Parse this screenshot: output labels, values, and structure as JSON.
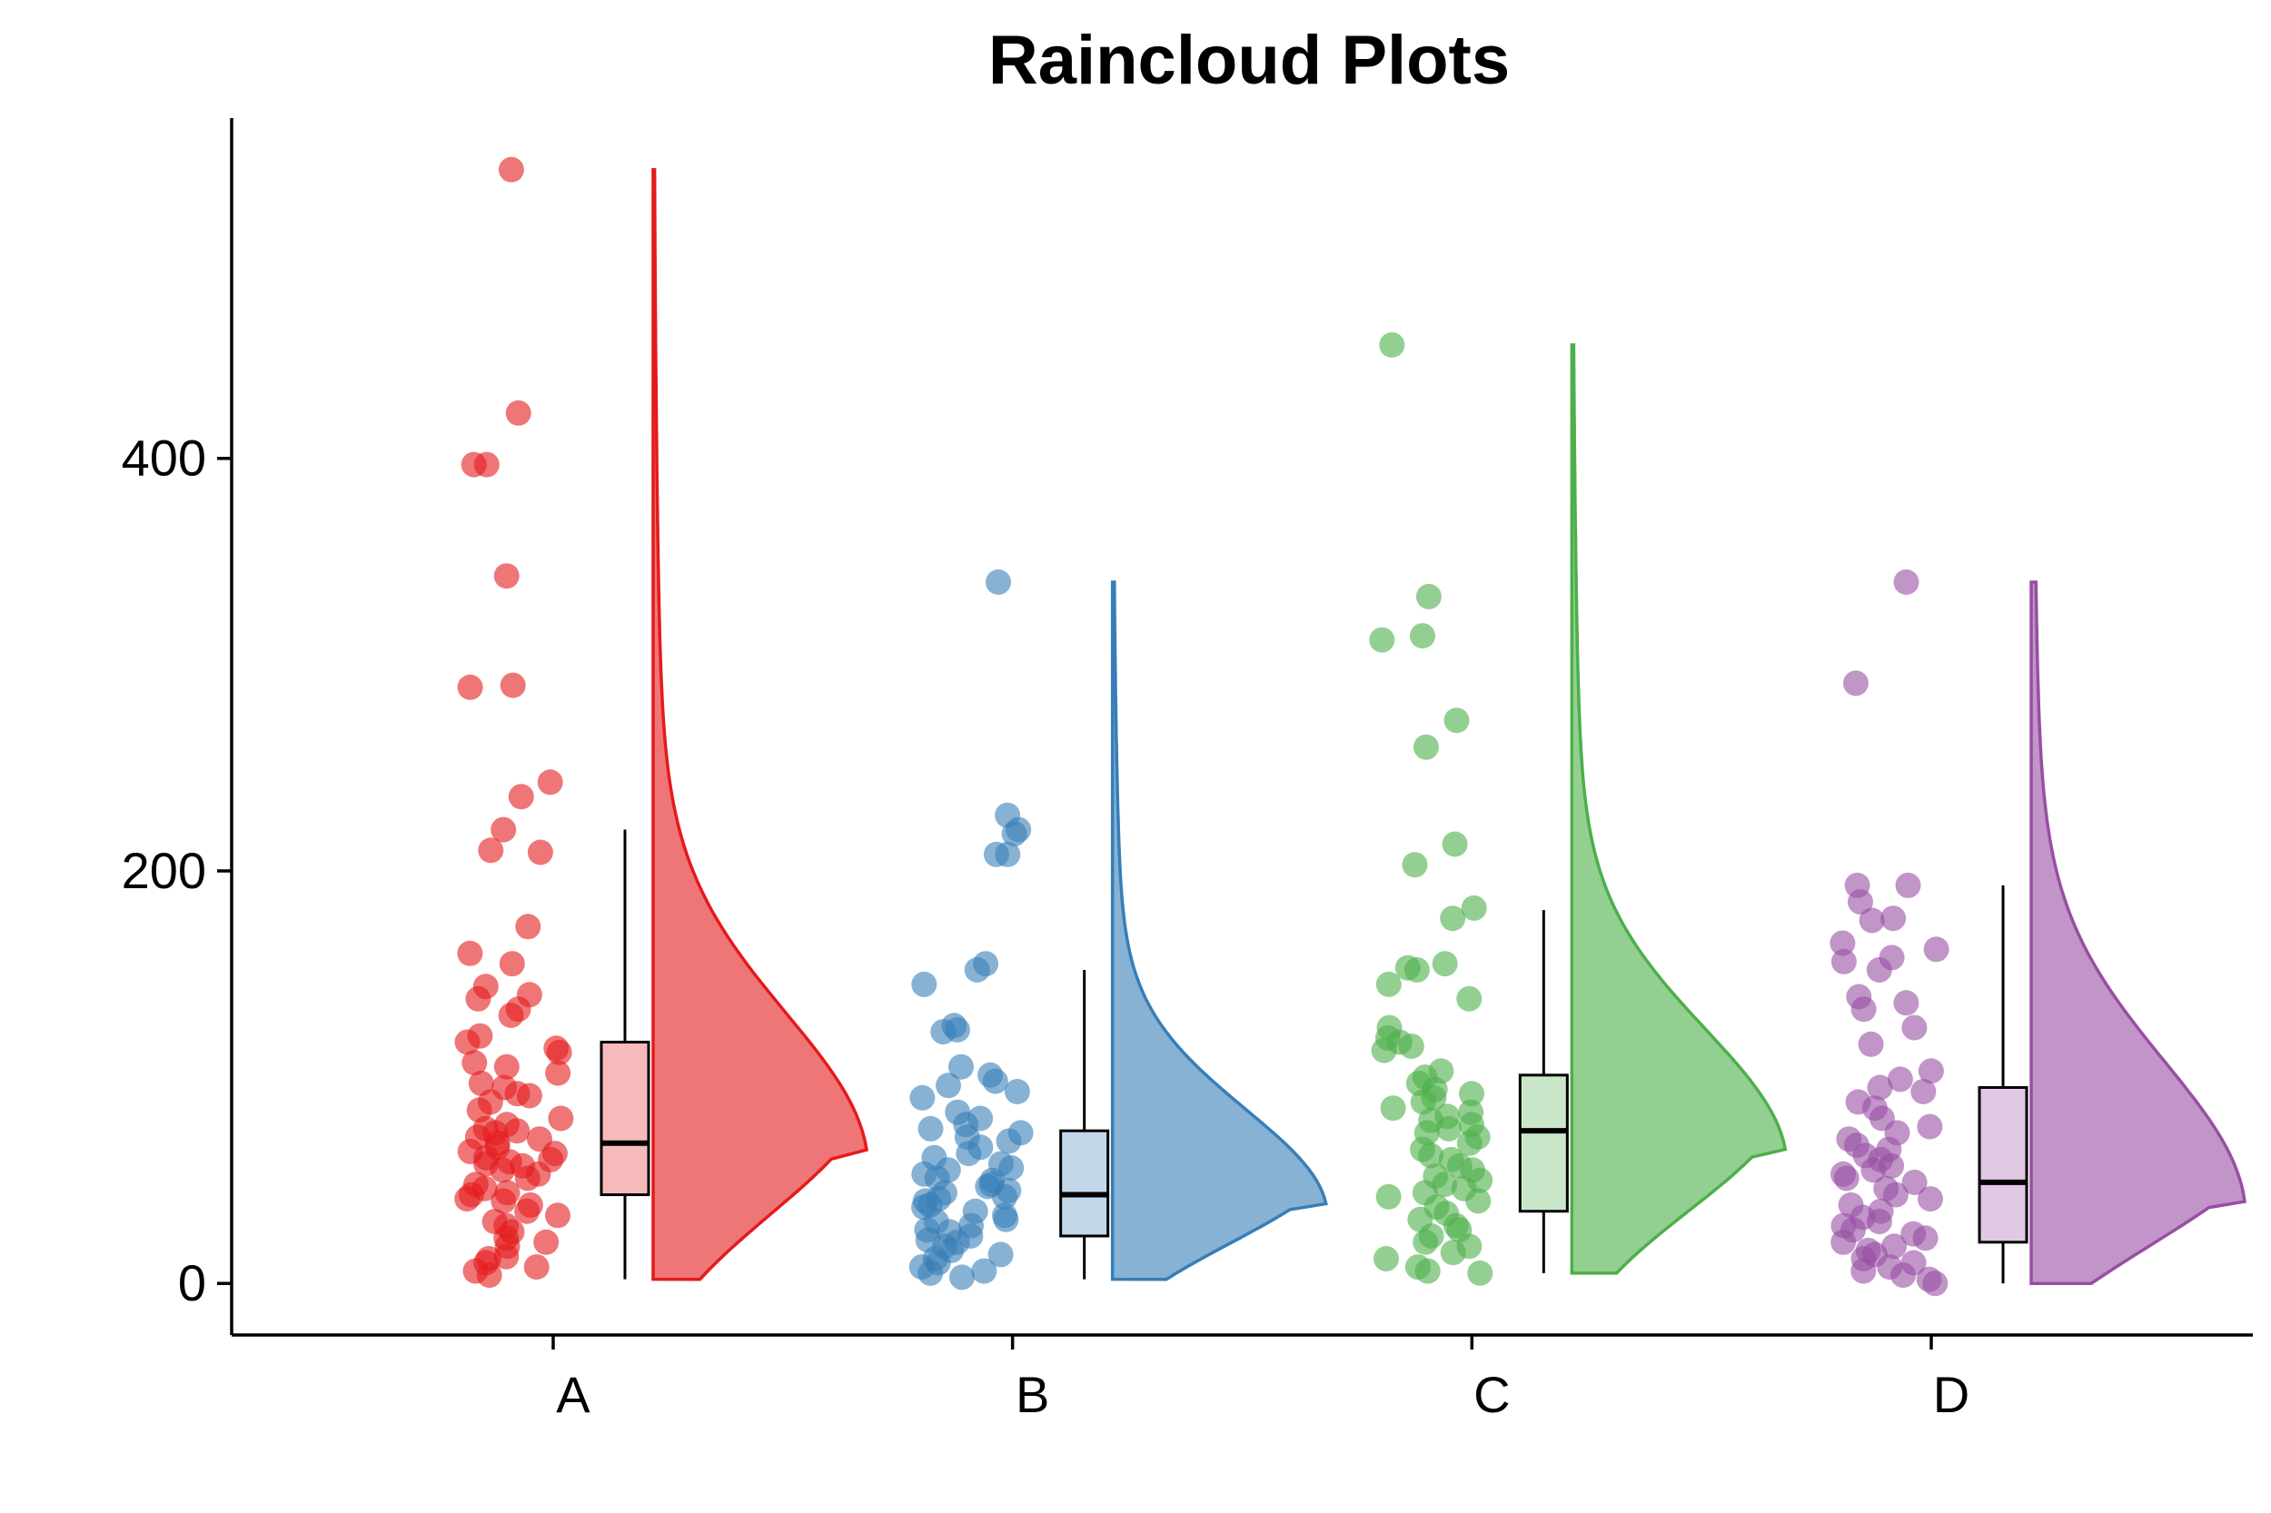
{
  "chart_data": {
    "type": "raincloud",
    "title": "Raincloud Plots",
    "xlabel": "",
    "ylabel": "",
    "ylim": [
      -25,
      565
    ],
    "y_ticks": [
      0,
      200,
      400
    ],
    "categories": [
      "A",
      "B",
      "C",
      "D"
    ],
    "colors": [
      "#E41A1C",
      "#377EB8",
      "#4DAF4A",
      "#984EA3"
    ],
    "grid": false,
    "legend": "none",
    "series": [
      {
        "category": "A",
        "box": {
          "q1": 43,
          "median": 68,
          "q3": 117,
          "whisker_low": 2,
          "whisker_high": 220
        },
        "density_range": [
          2,
          540
        ],
        "density_peak": 62,
        "points": [
          540,
          422,
          397,
          397,
          343,
          290,
          289,
          243,
          236,
          220,
          210,
          209,
          173,
          160,
          155,
          144,
          140,
          138,
          133,
          130,
          120,
          117,
          114,
          112,
          107,
          105,
          102,
          97,
          95,
          92,
          91,
          88,
          84,
          80,
          77,
          75,
          74,
          73,
          71,
          70,
          68,
          66,
          64,
          63,
          61,
          60,
          59,
          58,
          57,
          55,
          53,
          51,
          48,
          46,
          44,
          43,
          41,
          40,
          38,
          35,
          33,
          30,
          28,
          25,
          22,
          20,
          18,
          13,
          12,
          10,
          8,
          6,
          4
        ]
      },
      {
        "category": "B",
        "box": {
          "q1": 23,
          "median": 43,
          "q3": 74,
          "whisker_low": 2,
          "whisker_high": 152
        },
        "density_range": [
          2,
          340
        ],
        "density_peak": 37,
        "points": [
          340,
          227,
          220,
          218,
          208,
          208,
          155,
          152,
          145,
          125,
          123,
          122,
          105,
          101,
          98,
          96,
          93,
          90,
          83,
          80,
          77,
          75,
          73,
          71,
          69,
          66,
          63,
          61,
          58,
          56,
          55,
          53,
          51,
          50,
          48,
          47,
          45,
          44,
          42,
          41,
          40,
          38,
          37,
          35,
          33,
          31,
          30,
          28,
          26,
          25,
          23,
          21,
          20,
          18,
          16,
          14,
          12,
          10,
          8,
          6,
          5,
          3
        ]
      },
      {
        "category": "C",
        "box": {
          "q1": 35,
          "median": 74,
          "q3": 101,
          "whisker_low": 5,
          "whisker_high": 181
        },
        "density_range": [
          5,
          455
        ],
        "density_peak": 62,
        "points": [
          455,
          333,
          314,
          312,
          273,
          260,
          213,
          203,
          182,
          177,
          155,
          153,
          152,
          145,
          138,
          124,
          119,
          117,
          115,
          113,
          103,
          100,
          97,
          94,
          92,
          90,
          88,
          85,
          83,
          81,
          79,
          77,
          75,
          73,
          71,
          68,
          65,
          62,
          60,
          57,
          55,
          52,
          50,
          48,
          46,
          44,
          42,
          40,
          37,
          34,
          31,
          28,
          26,
          23,
          20,
          18,
          15,
          12,
          8,
          6,
          5
        ]
      },
      {
        "category": "D",
        "box": {
          "q1": 20,
          "median": 49,
          "q3": 95,
          "whisker_low": 0,
          "whisker_high": 193
        },
        "density_range": [
          0,
          340
        ],
        "density_peak": 38,
        "points": [
          340,
          291,
          193,
          193,
          185,
          177,
          176,
          165,
          162,
          158,
          156,
          152,
          139,
          136,
          133,
          124,
          116,
          103,
          99,
          95,
          93,
          88,
          85,
          80,
          76,
          73,
          70,
          67,
          65,
          62,
          60,
          57,
          55,
          53,
          51,
          49,
          46,
          43,
          41,
          38,
          35,
          32,
          30,
          28,
          26,
          24,
          22,
          20,
          18,
          16,
          14,
          12,
          10,
          8,
          6,
          4,
          2,
          0
        ]
      }
    ]
  }
}
